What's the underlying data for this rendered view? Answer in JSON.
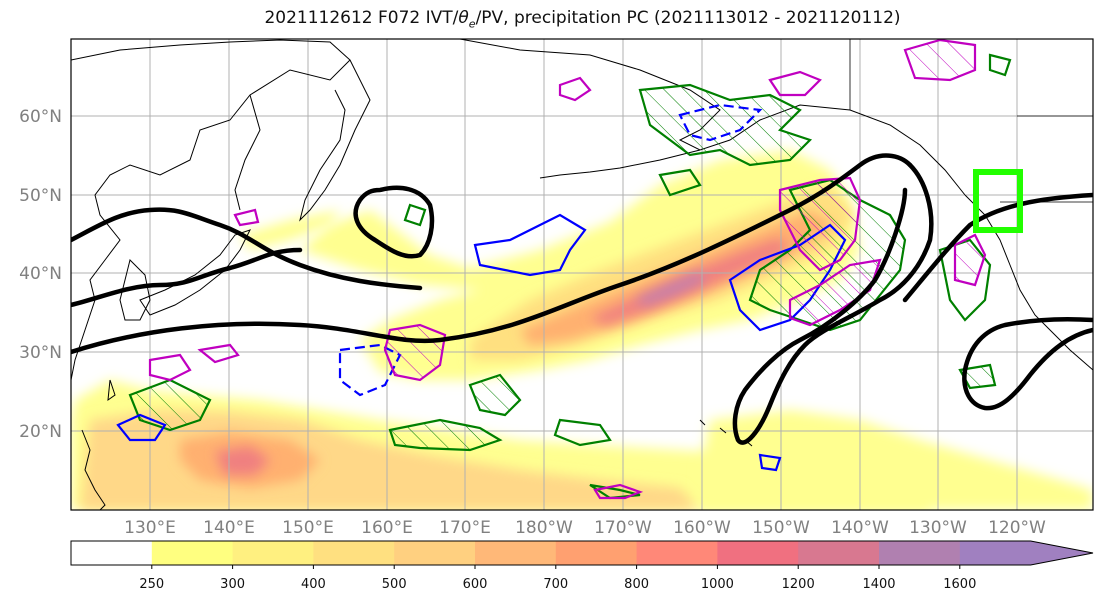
{
  "title": {
    "text_prefix": "2021112612 F072 IVT/",
    "theta": "θ",
    "theta_sub": "e",
    "text_suffix": "/PV, precipitation PC (2021113012 - 2021120112)"
  },
  "map": {
    "lat_labels": [
      "60°N",
      "50°N",
      "40°N",
      "30°N",
      "20°N"
    ],
    "lon_labels": [
      "130°E",
      "140°E",
      "150°E",
      "160°E",
      "170°E",
      "180°W",
      "170°W",
      "160°W",
      "150°W",
      "140°W",
      "130°W",
      "120°W"
    ],
    "highlight_box_color": "#22ff00",
    "contour_colors": {
      "thetae": "#000000",
      "precip_pc_positive": "#008000",
      "precip_pc_negative": "#0000ff",
      "pv": "#c000c0"
    }
  },
  "colorbar": {
    "tick_labels": [
      "250",
      "300",
      "400",
      "500",
      "600",
      "700",
      "800",
      "1000",
      "1200",
      "1400",
      "1600"
    ],
    "colors": [
      "#ffffff",
      "#ffff80",
      "#fff080",
      "#ffe080",
      "#ffd080",
      "#ffb878",
      "#ffa070",
      "#ff8878",
      "#f07080",
      "#d87890",
      "#b080b0",
      "#a080c0"
    ]
  }
}
